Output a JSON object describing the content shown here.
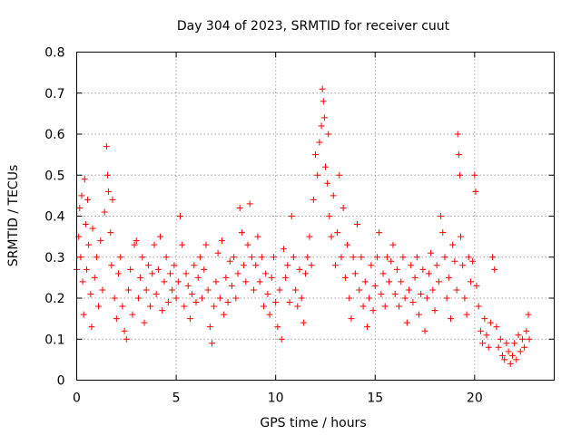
{
  "chart_data": {
    "type": "scatter",
    "title": "Day 304 of 2023, SRMTID for receiver cuut",
    "xlabel": "GPS time / hours",
    "ylabel": "SRMTID / TECUs",
    "xlim": [
      0,
      24
    ],
    "ylim": [
      0,
      0.8
    ],
    "xticks": [
      0,
      5,
      10,
      15,
      20
    ],
    "xtick_labels": [
      "0",
      "5",
      "10",
      "15",
      "20"
    ],
    "yticks": [
      0,
      0.1,
      0.2,
      0.3,
      0.4,
      0.5,
      0.6,
      0.7,
      0.8
    ],
    "ytick_labels": [
      "0",
      "0.1",
      "0.2",
      "0.3",
      "0.4",
      "0.5",
      "0.6",
      "0.7",
      "0.8"
    ],
    "grid": true,
    "marker": "plus",
    "color": "#ff0000",
    "series": [
      {
        "name": "cuut",
        "points": [
          [
            0.0,
            0.27
          ],
          [
            0.1,
            0.35
          ],
          [
            0.15,
            0.42
          ],
          [
            0.2,
            0.3
          ],
          [
            0.25,
            0.45
          ],
          [
            0.3,
            0.24
          ],
          [
            0.35,
            0.16
          ],
          [
            0.4,
            0.49
          ],
          [
            0.45,
            0.38
          ],
          [
            0.5,
            0.27
          ],
          [
            0.55,
            0.44
          ],
          [
            0.6,
            0.33
          ],
          [
            0.7,
            0.21
          ],
          [
            0.75,
            0.13
          ],
          [
            0.8,
            0.37
          ],
          [
            0.9,
            0.25
          ],
          [
            1.0,
            0.3
          ],
          [
            1.1,
            0.18
          ],
          [
            1.2,
            0.34
          ],
          [
            1.3,
            0.22
          ],
          [
            1.4,
            0.41
          ],
          [
            1.5,
            0.57
          ],
          [
            1.55,
            0.5
          ],
          [
            1.6,
            0.46
          ],
          [
            1.7,
            0.36
          ],
          [
            1.75,
            0.28
          ],
          [
            1.8,
            0.44
          ],
          [
            1.9,
            0.2
          ],
          [
            2.0,
            0.15
          ],
          [
            2.1,
            0.26
          ],
          [
            2.2,
            0.3
          ],
          [
            2.3,
            0.18
          ],
          [
            2.4,
            0.12
          ],
          [
            2.5,
            0.1
          ],
          [
            2.6,
            0.22
          ],
          [
            2.7,
            0.27
          ],
          [
            2.8,
            0.16
          ],
          [
            2.9,
            0.33
          ],
          [
            3.0,
            0.34
          ],
          [
            3.1,
            0.2
          ],
          [
            3.2,
            0.25
          ],
          [
            3.3,
            0.3
          ],
          [
            3.4,
            0.14
          ],
          [
            3.5,
            0.22
          ],
          [
            3.6,
            0.28
          ],
          [
            3.7,
            0.18
          ],
          [
            3.8,
            0.26
          ],
          [
            3.9,
            0.33
          ],
          [
            4.0,
            0.21
          ],
          [
            4.1,
            0.27
          ],
          [
            4.2,
            0.35
          ],
          [
            4.3,
            0.17
          ],
          [
            4.4,
            0.24
          ],
          [
            4.5,
            0.3
          ],
          [
            4.6,
            0.19
          ],
          [
            4.7,
            0.26
          ],
          [
            4.8,
            0.22
          ],
          [
            4.9,
            0.28
          ],
          [
            5.0,
            0.2
          ],
          [
            5.1,
            0.24
          ],
          [
            5.2,
            0.4
          ],
          [
            5.3,
            0.33
          ],
          [
            5.4,
            0.18
          ],
          [
            5.5,
            0.26
          ],
          [
            5.6,
            0.23
          ],
          [
            5.7,
            0.15
          ],
          [
            5.8,
            0.21
          ],
          [
            5.9,
            0.28
          ],
          [
            6.0,
            0.19
          ],
          [
            6.1,
            0.25
          ],
          [
            6.2,
            0.3
          ],
          [
            6.3,
            0.2
          ],
          [
            6.4,
            0.27
          ],
          [
            6.5,
            0.33
          ],
          [
            6.6,
            0.22
          ],
          [
            6.7,
            0.13
          ],
          [
            6.8,
            0.09
          ],
          [
            6.9,
            0.18
          ],
          [
            7.0,
            0.24
          ],
          [
            7.1,
            0.31
          ],
          [
            7.2,
            0.2
          ],
          [
            7.3,
            0.34
          ],
          [
            7.4,
            0.16
          ],
          [
            7.5,
            0.25
          ],
          [
            7.6,
            0.19
          ],
          [
            7.7,
            0.29
          ],
          [
            7.8,
            0.23
          ],
          [
            7.9,
            0.3
          ],
          [
            8.0,
            0.2
          ],
          [
            8.1,
            0.26
          ],
          [
            8.2,
            0.42
          ],
          [
            8.3,
            0.36
          ],
          [
            8.4,
            0.28
          ],
          [
            8.5,
            0.24
          ],
          [
            8.6,
            0.33
          ],
          [
            8.7,
            0.43
          ],
          [
            8.8,
            0.3
          ],
          [
            8.9,
            0.22
          ],
          [
            9.0,
            0.28
          ],
          [
            9.1,
            0.35
          ],
          [
            9.2,
            0.24
          ],
          [
            9.3,
            0.3
          ],
          [
            9.4,
            0.18
          ],
          [
            9.5,
            0.26
          ],
          [
            9.6,
            0.21
          ],
          [
            9.7,
            0.16
          ],
          [
            9.8,
            0.25
          ],
          [
            9.9,
            0.3
          ],
          [
            10.0,
            0.19
          ],
          [
            10.1,
            0.13
          ],
          [
            10.2,
            0.22
          ],
          [
            10.3,
            0.1
          ],
          [
            10.4,
            0.32
          ],
          [
            10.5,
            0.25
          ],
          [
            10.6,
            0.28
          ],
          [
            10.7,
            0.19
          ],
          [
            10.8,
            0.4
          ],
          [
            10.9,
            0.3
          ],
          [
            11.0,
            0.22
          ],
          [
            11.1,
            0.18
          ],
          [
            11.2,
            0.27
          ],
          [
            11.3,
            0.2
          ],
          [
            11.4,
            0.14
          ],
          [
            11.5,
            0.26
          ],
          [
            11.6,
            0.3
          ],
          [
            11.7,
            0.35
          ],
          [
            11.8,
            0.28
          ],
          [
            11.9,
            0.44
          ],
          [
            12.0,
            0.55
          ],
          [
            12.1,
            0.5
          ],
          [
            12.2,
            0.58
          ],
          [
            12.3,
            0.62
          ],
          [
            12.35,
            0.71
          ],
          [
            12.4,
            0.68
          ],
          [
            12.45,
            0.64
          ],
          [
            12.5,
            0.52
          ],
          [
            12.6,
            0.48
          ],
          [
            12.65,
            0.6
          ],
          [
            12.7,
            0.4
          ],
          [
            12.8,
            0.35
          ],
          [
            12.9,
            0.45
          ],
          [
            13.0,
            0.28
          ],
          [
            13.1,
            0.36
          ],
          [
            13.2,
            0.5
          ],
          [
            13.3,
            0.3
          ],
          [
            13.4,
            0.42
          ],
          [
            13.5,
            0.25
          ],
          [
            13.6,
            0.33
          ],
          [
            13.7,
            0.2
          ],
          [
            13.8,
            0.15
          ],
          [
            13.9,
            0.3
          ],
          [
            14.0,
            0.26
          ],
          [
            14.1,
            0.38
          ],
          [
            14.2,
            0.22
          ],
          [
            14.3,
            0.3
          ],
          [
            14.4,
            0.18
          ],
          [
            14.5,
            0.24
          ],
          [
            14.6,
            0.13
          ],
          [
            14.7,
            0.2
          ],
          [
            14.8,
            0.28
          ],
          [
            14.9,
            0.17
          ],
          [
            15.0,
            0.23
          ],
          [
            15.1,
            0.3
          ],
          [
            15.2,
            0.36
          ],
          [
            15.3,
            0.21
          ],
          [
            15.4,
            0.26
          ],
          [
            15.5,
            0.18
          ],
          [
            15.6,
            0.3
          ],
          [
            15.7,
            0.24
          ],
          [
            15.8,
            0.29
          ],
          [
            15.9,
            0.33
          ],
          [
            16.0,
            0.21
          ],
          [
            16.1,
            0.27
          ],
          [
            16.2,
            0.18
          ],
          [
            16.3,
            0.24
          ],
          [
            16.4,
            0.3
          ],
          [
            16.5,
            0.2
          ],
          [
            16.6,
            0.14
          ],
          [
            16.7,
            0.22
          ],
          [
            16.8,
            0.28
          ],
          [
            16.9,
            0.19
          ],
          [
            17.0,
            0.25
          ],
          [
            17.1,
            0.3
          ],
          [
            17.2,
            0.16
          ],
          [
            17.3,
            0.21
          ],
          [
            17.4,
            0.27
          ],
          [
            17.5,
            0.12
          ],
          [
            17.6,
            0.2
          ],
          [
            17.7,
            0.26
          ],
          [
            17.8,
            0.31
          ],
          [
            17.9,
            0.22
          ],
          [
            18.0,
            0.17
          ],
          [
            18.1,
            0.28
          ],
          [
            18.2,
            0.24
          ],
          [
            18.3,
            0.4
          ],
          [
            18.4,
            0.36
          ],
          [
            18.5,
            0.3
          ],
          [
            18.6,
            0.2
          ],
          [
            18.7,
            0.25
          ],
          [
            18.8,
            0.15
          ],
          [
            18.9,
            0.33
          ],
          [
            19.0,
            0.29
          ],
          [
            19.1,
            0.22
          ],
          [
            19.15,
            0.6
          ],
          [
            19.2,
            0.55
          ],
          [
            19.25,
            0.5
          ],
          [
            19.3,
            0.35
          ],
          [
            19.4,
            0.28
          ],
          [
            19.5,
            0.2
          ],
          [
            19.6,
            0.16
          ],
          [
            19.7,
            0.3
          ],
          [
            19.8,
            0.24
          ],
          [
            19.9,
            0.29
          ],
          [
            20.0,
            0.5
          ],
          [
            20.05,
            0.46
          ],
          [
            20.1,
            0.23
          ],
          [
            20.2,
            0.18
          ],
          [
            20.3,
            0.12
          ],
          [
            20.4,
            0.09
          ],
          [
            20.5,
            0.15
          ],
          [
            20.6,
            0.11
          ],
          [
            20.7,
            0.08
          ],
          [
            20.8,
            0.14
          ],
          [
            20.9,
            0.3
          ],
          [
            21.0,
            0.27
          ],
          [
            21.1,
            0.13
          ],
          [
            21.2,
            0.08
          ],
          [
            21.3,
            0.1
          ],
          [
            21.4,
            0.06
          ],
          [
            21.5,
            0.05
          ],
          [
            21.6,
            0.09
          ],
          [
            21.7,
            0.07
          ],
          [
            21.8,
            0.04
          ],
          [
            21.9,
            0.06
          ],
          [
            22.0,
            0.09
          ],
          [
            22.1,
            0.05
          ],
          [
            22.2,
            0.11
          ],
          [
            22.3,
            0.07
          ],
          [
            22.4,
            0.1
          ],
          [
            22.5,
            0.08
          ],
          [
            22.6,
            0.12
          ],
          [
            22.7,
            0.16
          ],
          [
            22.75,
            0.1
          ]
        ]
      }
    ]
  }
}
